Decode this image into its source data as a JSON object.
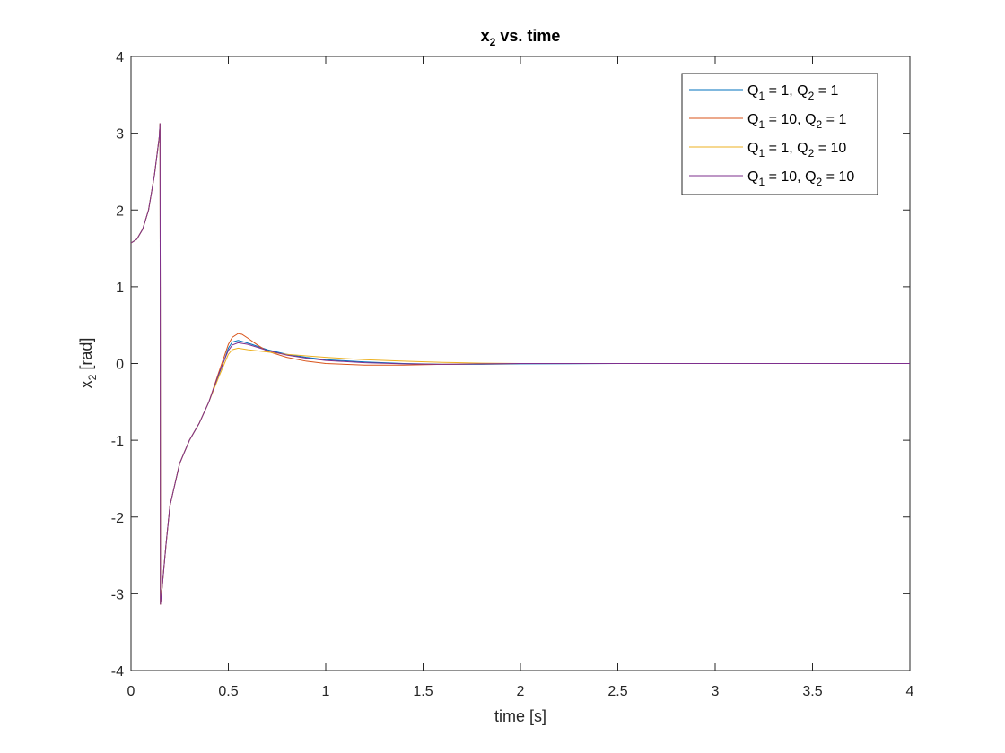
{
  "chart_data": {
    "type": "line",
    "title": {
      "base": "x",
      "sub": "2",
      "rest": " vs. time"
    },
    "xlabel": "time [s]",
    "ylabel": {
      "base": "x",
      "sub": "2",
      "rest": " [rad]"
    },
    "xlim": [
      0,
      4
    ],
    "ylim": [
      -4,
      4
    ],
    "xticks": [
      0,
      0.5,
      1,
      1.5,
      2,
      2.5,
      3,
      3.5,
      4
    ],
    "xtick_labels": [
      "0",
      "0.5",
      "1",
      "1.5",
      "2",
      "2.5",
      "3",
      "3.5",
      "4"
    ],
    "yticks": [
      -4,
      -3,
      -2,
      -1,
      0,
      1,
      2,
      3,
      4
    ],
    "ytick_labels": [
      "-4",
      "-3",
      "-2",
      "-1",
      "0",
      "1",
      "2",
      "3",
      "4"
    ],
    "grid": false,
    "legend_position": "top-right",
    "series": [
      {
        "name": "Q1 = 1, Q2 = 1",
        "legend": [
          {
            "t": "Q"
          },
          {
            "t": "1",
            "sub": true
          },
          {
            "t": " = 1, Q"
          },
          {
            "t": "2",
            "sub": true
          },
          {
            "t": " = 1"
          }
        ],
        "color": "#0072BD",
        "x": [
          0,
          0.03,
          0.06,
          0.09,
          0.12,
          0.145,
          0.149,
          0.15,
          0.151,
          0.155,
          0.18,
          0.2,
          0.25,
          0.3,
          0.35,
          0.4,
          0.45,
          0.48,
          0.5,
          0.52,
          0.55,
          0.58,
          0.62,
          0.7,
          0.8,
          0.9,
          1.0,
          1.2,
          1.4,
          1.6,
          1.8,
          2.0,
          2.5,
          3,
          3.5,
          4
        ],
        "y": [
          1.57,
          1.62,
          1.75,
          2.0,
          2.45,
          2.95,
          3.13,
          1.0,
          -3.14,
          -3.05,
          -2.35,
          -1.85,
          -1.3,
          -1.0,
          -0.78,
          -0.5,
          -0.15,
          0.05,
          0.2,
          0.28,
          0.3,
          0.28,
          0.25,
          0.18,
          0.12,
          0.08,
          0.05,
          0.02,
          0.0,
          -0.01,
          -0.01,
          -0.005,
          0,
          0,
          0,
          0
        ]
      },
      {
        "name": "Q1 = 10, Q2 = 1",
        "legend": [
          {
            "t": "Q"
          },
          {
            "t": "1",
            "sub": true
          },
          {
            "t": " = 10, Q"
          },
          {
            "t": "2",
            "sub": true
          },
          {
            "t": " = 1"
          }
        ],
        "color": "#D95319",
        "x": [
          0,
          0.03,
          0.06,
          0.09,
          0.12,
          0.145,
          0.149,
          0.15,
          0.151,
          0.155,
          0.18,
          0.2,
          0.25,
          0.3,
          0.35,
          0.4,
          0.45,
          0.48,
          0.5,
          0.52,
          0.55,
          0.57,
          0.6,
          0.65,
          0.7,
          0.8,
          0.9,
          1.0,
          1.2,
          1.4,
          1.6,
          1.8,
          2.0,
          2.5,
          3,
          3.5,
          4
        ],
        "y": [
          1.57,
          1.62,
          1.75,
          2.0,
          2.45,
          2.95,
          3.13,
          1.0,
          -3.14,
          -3.05,
          -2.35,
          -1.85,
          -1.3,
          -1.0,
          -0.78,
          -0.5,
          -0.12,
          0.1,
          0.25,
          0.34,
          0.39,
          0.38,
          0.33,
          0.24,
          0.16,
          0.08,
          0.03,
          0.0,
          -0.02,
          -0.02,
          -0.01,
          -0.005,
          0,
          0,
          0,
          0,
          0
        ]
      },
      {
        "name": "Q1 = 1, Q2 = 10",
        "legend": [
          {
            "t": "Q"
          },
          {
            "t": "1",
            "sub": true
          },
          {
            "t": " = 1, Q"
          },
          {
            "t": "2",
            "sub": true
          },
          {
            "t": " = 10"
          }
        ],
        "color": "#EDB120",
        "x": [
          0,
          0.03,
          0.06,
          0.09,
          0.12,
          0.145,
          0.149,
          0.15,
          0.151,
          0.155,
          0.18,
          0.2,
          0.25,
          0.3,
          0.35,
          0.4,
          0.45,
          0.48,
          0.5,
          0.52,
          0.55,
          0.6,
          0.7,
          0.8,
          0.9,
          1.0,
          1.2,
          1.4,
          1.6,
          1.8,
          2.0,
          2.5,
          3,
          3.5,
          4
        ],
        "y": [
          1.57,
          1.62,
          1.75,
          2.0,
          2.45,
          2.95,
          3.13,
          1.0,
          -3.14,
          -3.05,
          -2.35,
          -1.85,
          -1.3,
          -1.0,
          -0.78,
          -0.5,
          -0.18,
          0.0,
          0.12,
          0.18,
          0.2,
          0.18,
          0.15,
          0.12,
          0.1,
          0.08,
          0.05,
          0.03,
          0.015,
          0.005,
          0.0,
          0,
          0,
          0,
          0
        ]
      },
      {
        "name": "Q1 = 10, Q2 = 10",
        "legend": [
          {
            "t": "Q"
          },
          {
            "t": "1",
            "sub": true
          },
          {
            "t": " = 10, Q"
          },
          {
            "t": "2",
            "sub": true
          },
          {
            "t": " = 10"
          }
        ],
        "color": "#7E2F8E",
        "x": [
          0,
          0.03,
          0.06,
          0.09,
          0.12,
          0.145,
          0.149,
          0.15,
          0.151,
          0.155,
          0.18,
          0.2,
          0.25,
          0.3,
          0.35,
          0.4,
          0.45,
          0.48,
          0.5,
          0.52,
          0.55,
          0.6,
          0.65,
          0.7,
          0.8,
          0.9,
          1.0,
          1.2,
          1.4,
          1.6,
          1.8,
          2.0,
          2.5,
          3,
          3.5,
          4
        ],
        "y": [
          1.57,
          1.62,
          1.75,
          2.0,
          2.45,
          2.95,
          3.13,
          1.0,
          -3.14,
          -3.05,
          -2.35,
          -1.85,
          -1.3,
          -1.0,
          -0.78,
          -0.5,
          -0.14,
          0.05,
          0.17,
          0.24,
          0.27,
          0.25,
          0.21,
          0.17,
          0.11,
          0.07,
          0.04,
          0.01,
          -0.005,
          -0.01,
          -0.005,
          0,
          0,
          0,
          0,
          0
        ]
      }
    ]
  }
}
